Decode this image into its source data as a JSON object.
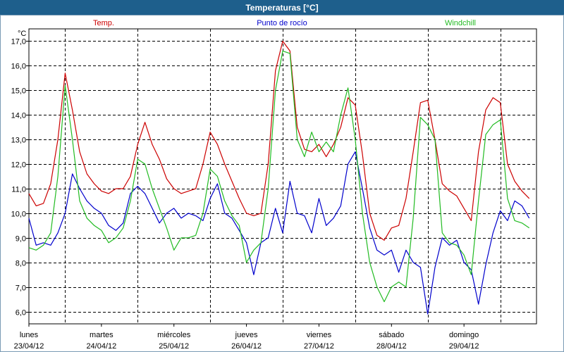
{
  "window": {
    "title": "Temperaturas [°C]"
  },
  "colors": {
    "temp": "#cc0000",
    "dew": "#0000cc",
    "windchill": "#22bb22",
    "grid": "#000000",
    "titlebar": "#1e5f8c"
  },
  "chart_data": {
    "type": "line",
    "ylabel": "°C",
    "ylim": [
      5.5,
      17.5
    ],
    "yticks": [
      "6,0",
      "7,0",
      "8,0",
      "9,0",
      "10,0",
      "11,0",
      "12,0",
      "13,0",
      "14,0",
      "15,0",
      "16,0",
      "17,0"
    ],
    "xlim": [
      0,
      7
    ],
    "x_tick_days": [
      {
        "day": "lunes",
        "date": "23/04/12"
      },
      {
        "day": "martes",
        "date": "24/04/12"
      },
      {
        "day": "miércoles",
        "date": "25/04/12"
      },
      {
        "day": "jueves",
        "date": "26/04/12"
      },
      {
        "day": "viernes",
        "date": "27/04/12"
      },
      {
        "day": "sábado",
        "date": "28/04/12"
      },
      {
        "day": "domingo",
        "date": "29/04/12"
      }
    ],
    "grid": true,
    "legend_position": "top",
    "series": [
      {
        "name": "Temp.",
        "points": [
          [
            0,
            10.8
          ],
          [
            0.1,
            10.3
          ],
          [
            0.2,
            10.4
          ],
          [
            0.3,
            11.2
          ],
          [
            0.4,
            13.0
          ],
          [
            0.5,
            15.7
          ],
          [
            0.6,
            14.2
          ],
          [
            0.7,
            12.5
          ],
          [
            0.8,
            11.6
          ],
          [
            0.9,
            11.2
          ],
          [
            1.0,
            10.9
          ],
          [
            1.1,
            10.8
          ],
          [
            1.2,
            11.0
          ],
          [
            1.3,
            11.0
          ],
          [
            1.4,
            11.5
          ],
          [
            1.5,
            12.8
          ],
          [
            1.6,
            13.7
          ],
          [
            1.7,
            12.8
          ],
          [
            1.8,
            12.2
          ],
          [
            1.9,
            11.4
          ],
          [
            2.0,
            11.0
          ],
          [
            2.1,
            10.8
          ],
          [
            2.2,
            10.9
          ],
          [
            2.3,
            11.0
          ],
          [
            2.4,
            12.0
          ],
          [
            2.5,
            13.3
          ],
          [
            2.6,
            12.8
          ],
          [
            2.7,
            12.0
          ],
          [
            2.8,
            11.3
          ],
          [
            2.9,
            10.6
          ],
          [
            3.0,
            10.0
          ],
          [
            3.1,
            9.9
          ],
          [
            3.2,
            10.0
          ],
          [
            3.3,
            12.0
          ],
          [
            3.4,
            15.8
          ],
          [
            3.5,
            17.0
          ],
          [
            3.6,
            16.6
          ],
          [
            3.7,
            13.5
          ],
          [
            3.8,
            12.6
          ],
          [
            3.9,
            12.5
          ],
          [
            4.0,
            12.8
          ],
          [
            4.1,
            12.3
          ],
          [
            4.2,
            12.8
          ],
          [
            4.3,
            13.5
          ],
          [
            4.4,
            14.7
          ],
          [
            4.5,
            14.4
          ],
          [
            4.6,
            12.4
          ],
          [
            4.7,
            10.0
          ],
          [
            4.8,
            9.1
          ],
          [
            4.9,
            8.9
          ],
          [
            5.0,
            9.4
          ],
          [
            5.1,
            9.5
          ],
          [
            5.2,
            10.6
          ],
          [
            5.3,
            12.5
          ],
          [
            5.4,
            14.5
          ],
          [
            5.5,
            14.6
          ],
          [
            5.6,
            13.0
          ],
          [
            5.7,
            11.2
          ],
          [
            5.8,
            10.9
          ],
          [
            5.9,
            10.7
          ],
          [
            6.0,
            10.2
          ],
          [
            6.1,
            9.7
          ],
          [
            6.2,
            12.5
          ],
          [
            6.3,
            14.2
          ],
          [
            6.4,
            14.7
          ],
          [
            6.5,
            14.5
          ],
          [
            6.6,
            12.0
          ],
          [
            6.7,
            11.3
          ],
          [
            6.8,
            10.9
          ],
          [
            6.9,
            10.6
          ]
        ]
      },
      {
        "name": "Punto de rocío",
        "points": [
          [
            0,
            9.8
          ],
          [
            0.1,
            8.7
          ],
          [
            0.2,
            8.8
          ],
          [
            0.3,
            8.7
          ],
          [
            0.4,
            9.2
          ],
          [
            0.5,
            10.0
          ],
          [
            0.6,
            11.6
          ],
          [
            0.7,
            11.0
          ],
          [
            0.8,
            10.5
          ],
          [
            0.9,
            10.2
          ],
          [
            1.0,
            10.0
          ],
          [
            1.1,
            9.5
          ],
          [
            1.2,
            9.3
          ],
          [
            1.3,
            9.6
          ],
          [
            1.4,
            10.8
          ],
          [
            1.5,
            11.1
          ],
          [
            1.6,
            10.8
          ],
          [
            1.7,
            10.2
          ],
          [
            1.8,
            9.6
          ],
          [
            1.9,
            10.0
          ],
          [
            2.0,
            10.2
          ],
          [
            2.1,
            9.8
          ],
          [
            2.2,
            10.0
          ],
          [
            2.3,
            9.9
          ],
          [
            2.4,
            9.7
          ],
          [
            2.5,
            10.6
          ],
          [
            2.6,
            11.2
          ],
          [
            2.7,
            10.0
          ],
          [
            2.8,
            9.8
          ],
          [
            2.9,
            9.3
          ],
          [
            3.0,
            8.8
          ],
          [
            3.1,
            7.5
          ],
          [
            3.2,
            8.8
          ],
          [
            3.3,
            9.0
          ],
          [
            3.4,
            10.2
          ],
          [
            3.5,
            9.2
          ],
          [
            3.6,
            11.3
          ],
          [
            3.7,
            10.0
          ],
          [
            3.8,
            9.9
          ],
          [
            3.9,
            9.2
          ],
          [
            4.0,
            10.6
          ],
          [
            4.1,
            9.5
          ],
          [
            4.2,
            9.8
          ],
          [
            4.3,
            10.3
          ],
          [
            4.4,
            12.0
          ],
          [
            4.5,
            12.5
          ],
          [
            4.6,
            11.0
          ],
          [
            4.7,
            9.4
          ],
          [
            4.8,
            8.5
          ],
          [
            4.9,
            8.3
          ],
          [
            5.0,
            8.5
          ],
          [
            5.1,
            7.6
          ],
          [
            5.2,
            8.5
          ],
          [
            5.3,
            8.0
          ],
          [
            5.4,
            7.8
          ],
          [
            5.5,
            5.9
          ],
          [
            5.6,
            7.8
          ],
          [
            5.7,
            9.0
          ],
          [
            5.8,
            8.7
          ],
          [
            5.9,
            8.9
          ],
          [
            6.0,
            8.0
          ],
          [
            6.1,
            7.7
          ],
          [
            6.2,
            6.3
          ],
          [
            6.3,
            7.9
          ],
          [
            6.4,
            9.2
          ],
          [
            6.5,
            10.1
          ],
          [
            6.6,
            9.7
          ],
          [
            6.7,
            10.5
          ],
          [
            6.8,
            10.3
          ],
          [
            6.9,
            9.8
          ]
        ]
      },
      {
        "name": "Windchill",
        "points": [
          [
            0,
            8.6
          ],
          [
            0.1,
            8.5
          ],
          [
            0.2,
            8.7
          ],
          [
            0.3,
            9.2
          ],
          [
            0.4,
            11.5
          ],
          [
            0.5,
            15.2
          ],
          [
            0.6,
            13.0
          ],
          [
            0.7,
            10.5
          ],
          [
            0.8,
            9.8
          ],
          [
            0.9,
            9.5
          ],
          [
            1.0,
            9.3
          ],
          [
            1.1,
            8.8
          ],
          [
            1.2,
            9.0
          ],
          [
            1.3,
            9.4
          ],
          [
            1.4,
            10.5
          ],
          [
            1.5,
            12.2
          ],
          [
            1.6,
            12.0
          ],
          [
            1.7,
            11.0
          ],
          [
            1.8,
            10.2
          ],
          [
            1.9,
            9.4
          ],
          [
            2.0,
            8.5
          ],
          [
            2.1,
            9.0
          ],
          [
            2.2,
            9.0
          ],
          [
            2.3,
            9.1
          ],
          [
            2.4,
            10.0
          ],
          [
            2.5,
            11.8
          ],
          [
            2.6,
            11.5
          ],
          [
            2.7,
            10.5
          ],
          [
            2.8,
            9.9
          ],
          [
            2.9,
            9.5
          ],
          [
            3.0,
            8.0
          ],
          [
            3.1,
            8.5
          ],
          [
            3.2,
            8.8
          ],
          [
            3.3,
            11.0
          ],
          [
            3.4,
            15.0
          ],
          [
            3.5,
            16.6
          ],
          [
            3.6,
            16.5
          ],
          [
            3.7,
            13.0
          ],
          [
            3.8,
            12.3
          ],
          [
            3.9,
            13.3
          ],
          [
            4.0,
            12.5
          ],
          [
            4.1,
            12.9
          ],
          [
            4.2,
            12.5
          ],
          [
            4.3,
            14.0
          ],
          [
            4.4,
            15.1
          ],
          [
            4.5,
            13.0
          ],
          [
            4.6,
            10.0
          ],
          [
            4.7,
            8.0
          ],
          [
            4.8,
            7.0
          ],
          [
            4.9,
            6.4
          ],
          [
            5.0,
            7.0
          ],
          [
            5.1,
            7.2
          ],
          [
            5.2,
            7.0
          ],
          [
            5.3,
            9.8
          ],
          [
            5.4,
            13.9
          ],
          [
            5.5,
            13.6
          ],
          [
            5.6,
            13.0
          ],
          [
            5.7,
            9.2
          ],
          [
            5.8,
            8.8
          ],
          [
            5.9,
            8.7
          ],
          [
            6.0,
            8.3
          ],
          [
            6.1,
            7.5
          ],
          [
            6.2,
            10.5
          ],
          [
            6.3,
            13.2
          ],
          [
            6.4,
            13.6
          ],
          [
            6.5,
            13.8
          ],
          [
            6.6,
            10.6
          ],
          [
            6.7,
            9.7
          ],
          [
            6.8,
            9.6
          ],
          [
            6.9,
            9.4
          ]
        ]
      }
    ]
  }
}
